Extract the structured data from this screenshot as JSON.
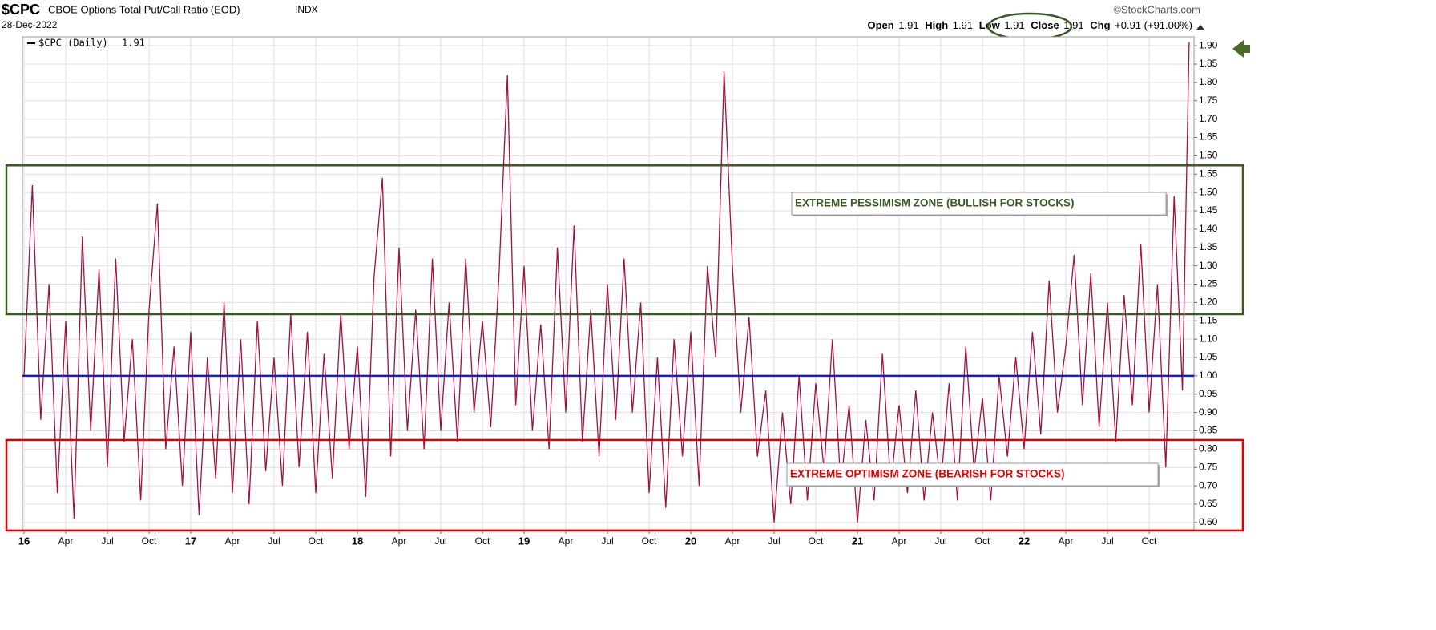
{
  "chart_data": {
    "type": "line",
    "title": "$CPC",
    "subtitle": "CBOE Options Total Put/Call Ratio (EOD)",
    "exchange": "INDX",
    "date": "28-Dec-2022",
    "source": "©StockCharts.com",
    "quote": {
      "open_label": "Open",
      "open": 1.91,
      "high_label": "High",
      "high": 1.91,
      "low_label": "Low",
      "low": 1.91,
      "close_label": "Close",
      "close": 1.91,
      "change_label": "Chg",
      "change": "+0.91 (+91.00%)"
    },
    "series": [
      {
        "name": "$CPC (Daily)",
        "color": "#a3123e",
        "x": [
          2016.0,
          2016.05,
          2016.1,
          2016.15,
          2016.2,
          2016.25,
          2016.3,
          2016.35,
          2016.4,
          2016.45,
          2016.5,
          2016.55,
          2016.6,
          2016.65,
          2016.7,
          2016.75,
          2016.8,
          2016.85,
          2016.9,
          2016.95,
          2017.0,
          2017.05,
          2017.1,
          2017.15,
          2017.2,
          2017.25,
          2017.3,
          2017.35,
          2017.4,
          2017.45,
          2017.5,
          2017.55,
          2017.6,
          2017.65,
          2017.7,
          2017.75,
          2017.8,
          2017.85,
          2017.9,
          2017.95,
          2018.0,
          2018.05,
          2018.1,
          2018.15,
          2018.2,
          2018.25,
          2018.3,
          2018.35,
          2018.4,
          2018.45,
          2018.5,
          2018.55,
          2018.6,
          2018.65,
          2018.7,
          2018.75,
          2018.8,
          2018.85,
          2018.9,
          2018.95,
          2019.0,
          2019.05,
          2019.1,
          2019.15,
          2019.2,
          2019.25,
          2019.3,
          2019.35,
          2019.4,
          2019.45,
          2019.5,
          2019.55,
          2019.6,
          2019.65,
          2019.7,
          2019.75,
          2019.8,
          2019.85,
          2019.9,
          2019.95,
          2020.0,
          2020.05,
          2020.1,
          2020.15,
          2020.2,
          2020.25,
          2020.3,
          2020.35,
          2020.4,
          2020.45,
          2020.5,
          2020.55,
          2020.6,
          2020.65,
          2020.7,
          2020.75,
          2020.8,
          2020.85,
          2020.9,
          2020.95,
          2021.0,
          2021.05,
          2021.1,
          2021.15,
          2021.2,
          2021.25,
          2021.3,
          2021.35,
          2021.4,
          2021.45,
          2021.5,
          2021.55,
          2021.6,
          2021.65,
          2021.7,
          2021.75,
          2021.8,
          2021.85,
          2021.9,
          2021.95,
          2022.0,
          2022.05,
          2022.1,
          2022.15,
          2022.2,
          2022.25,
          2022.3,
          2022.35,
          2022.4,
          2022.45,
          2022.5,
          2022.55,
          2022.6,
          2022.65,
          2022.7,
          2022.75,
          2022.8,
          2022.85,
          2022.9,
          2022.95,
          2022.99
        ],
        "values": [
          1.0,
          1.52,
          0.88,
          1.25,
          0.68,
          1.15,
          0.61,
          1.38,
          0.85,
          1.29,
          0.75,
          1.32,
          0.82,
          1.1,
          0.66,
          1.18,
          1.47,
          0.8,
          1.08,
          0.7,
          1.12,
          0.62,
          1.05,
          0.72,
          1.2,
          0.68,
          1.1,
          0.65,
          1.15,
          0.74,
          1.05,
          0.7,
          1.17,
          0.75,
          1.12,
          0.68,
          1.06,
          0.72,
          1.17,
          0.8,
          1.08,
          0.67,
          1.27,
          1.54,
          0.78,
          1.35,
          0.85,
          1.18,
          0.8,
          1.32,
          0.85,
          1.2,
          0.82,
          1.32,
          0.9,
          1.15,
          0.86,
          1.28,
          1.82,
          0.92,
          1.3,
          0.85,
          1.14,
          0.8,
          1.35,
          0.9,
          1.41,
          0.82,
          1.18,
          0.78,
          1.25,
          0.88,
          1.32,
          0.9,
          1.2,
          0.68,
          1.05,
          0.64,
          1.1,
          0.78,
          1.12,
          0.7,
          1.3,
          1.05,
          1.83,
          1.3,
          0.9,
          1.16,
          0.78,
          0.96,
          0.6,
          0.9,
          0.65,
          1.0,
          0.66,
          0.98,
          0.74,
          1.1,
          0.7,
          0.92,
          0.6,
          0.88,
          0.66,
          1.06,
          0.7,
          0.92,
          0.68,
          0.96,
          0.66,
          0.9,
          0.7,
          0.98,
          0.66,
          1.08,
          0.74,
          0.94,
          0.66,
          1.0,
          0.78,
          1.05,
          0.8,
          1.12,
          0.84,
          1.26,
          0.9,
          1.08,
          1.33,
          0.92,
          1.28,
          0.86,
          1.2,
          0.82,
          1.22,
          0.92,
          1.36,
          0.9,
          1.25,
          0.75,
          1.49,
          0.96,
          1.91
        ]
      }
    ],
    "xlim": [
      2016,
      2023
    ],
    "xticks": [
      {
        "value": 2016,
        "label": "16"
      },
      {
        "value": 2016.25,
        "label": "Apr"
      },
      {
        "value": 2016.5,
        "label": "Jul"
      },
      {
        "value": 2016.75,
        "label": "Oct"
      },
      {
        "value": 2017,
        "label": "17"
      },
      {
        "value": 2017.25,
        "label": "Apr"
      },
      {
        "value": 2017.5,
        "label": "Jul"
      },
      {
        "value": 2017.75,
        "label": "Oct"
      },
      {
        "value": 2018,
        "label": "18"
      },
      {
        "value": 2018.25,
        "label": "Apr"
      },
      {
        "value": 2018.5,
        "label": "Jul"
      },
      {
        "value": 2018.75,
        "label": "Oct"
      },
      {
        "value": 2019,
        "label": "19"
      },
      {
        "value": 2019.25,
        "label": "Apr"
      },
      {
        "value": 2019.5,
        "label": "Jul"
      },
      {
        "value": 2019.75,
        "label": "Oct"
      },
      {
        "value": 2020,
        "label": "20"
      },
      {
        "value": 2020.25,
        "label": "Apr"
      },
      {
        "value": 2020.5,
        "label": "Jul"
      },
      {
        "value": 2020.75,
        "label": "Oct"
      },
      {
        "value": 2021,
        "label": "21"
      },
      {
        "value": 2021.25,
        "label": "Apr"
      },
      {
        "value": 2021.5,
        "label": "Jul"
      },
      {
        "value": 2021.75,
        "label": "Oct"
      },
      {
        "value": 2022,
        "label": "22"
      },
      {
        "value": 2022.25,
        "label": "Apr"
      },
      {
        "value": 2022.5,
        "label": "Jul"
      },
      {
        "value": 2022.75,
        "label": "Oct"
      }
    ],
    "ylim": [
      0.58,
      1.92
    ],
    "yticks": [
      {
        "value": 0.6,
        "label": "0.60"
      },
      {
        "value": 0.65,
        "label": "0.65"
      },
      {
        "value": 0.7,
        "label": "0.70"
      },
      {
        "value": 0.75,
        "label": "0.75"
      },
      {
        "value": 0.8,
        "label": "0.80"
      },
      {
        "value": 0.85,
        "label": "0.85"
      },
      {
        "value": 0.9,
        "label": "0.90"
      },
      {
        "value": 0.95,
        "label": "0.95"
      },
      {
        "value": 1.0,
        "label": "1.00"
      },
      {
        "value": 1.05,
        "label": "1.05"
      },
      {
        "value": 1.1,
        "label": "1.10"
      },
      {
        "value": 1.15,
        "label": "1.15"
      },
      {
        "value": 1.2,
        "label": "1.20"
      },
      {
        "value": 1.25,
        "label": "1.25"
      },
      {
        "value": 1.3,
        "label": "1.30"
      },
      {
        "value": 1.35,
        "label": "1.35"
      },
      {
        "value": 1.4,
        "label": "1.40"
      },
      {
        "value": 1.45,
        "label": "1.45"
      },
      {
        "value": 1.5,
        "label": "1.50"
      },
      {
        "value": 1.55,
        "label": "1.55"
      },
      {
        "value": 1.6,
        "label": "1.60"
      },
      {
        "value": 1.65,
        "label": "1.65"
      },
      {
        "value": 1.7,
        "label": "1.70"
      },
      {
        "value": 1.75,
        "label": "1.75"
      },
      {
        "value": 1.8,
        "label": "1.80"
      },
      {
        "value": 1.85,
        "label": "1.85"
      },
      {
        "value": 1.9,
        "label": "1.90"
      }
    ],
    "grid": true,
    "reference_line": {
      "value": 1.0,
      "color": "#1a1acc"
    },
    "zones": [
      {
        "label": "EXTREME PESSIMISM ZONE (BULLISH FOR STOCKS)",
        "range": [
          1.168,
          1.574
        ],
        "color": "#3b5a23"
      },
      {
        "label": "EXTREME OPTIMISM ZONE (BEARISH FOR STOCKS)",
        "range": [
          0.578,
          0.825
        ],
        "color": "#e00000"
      }
    ]
  }
}
